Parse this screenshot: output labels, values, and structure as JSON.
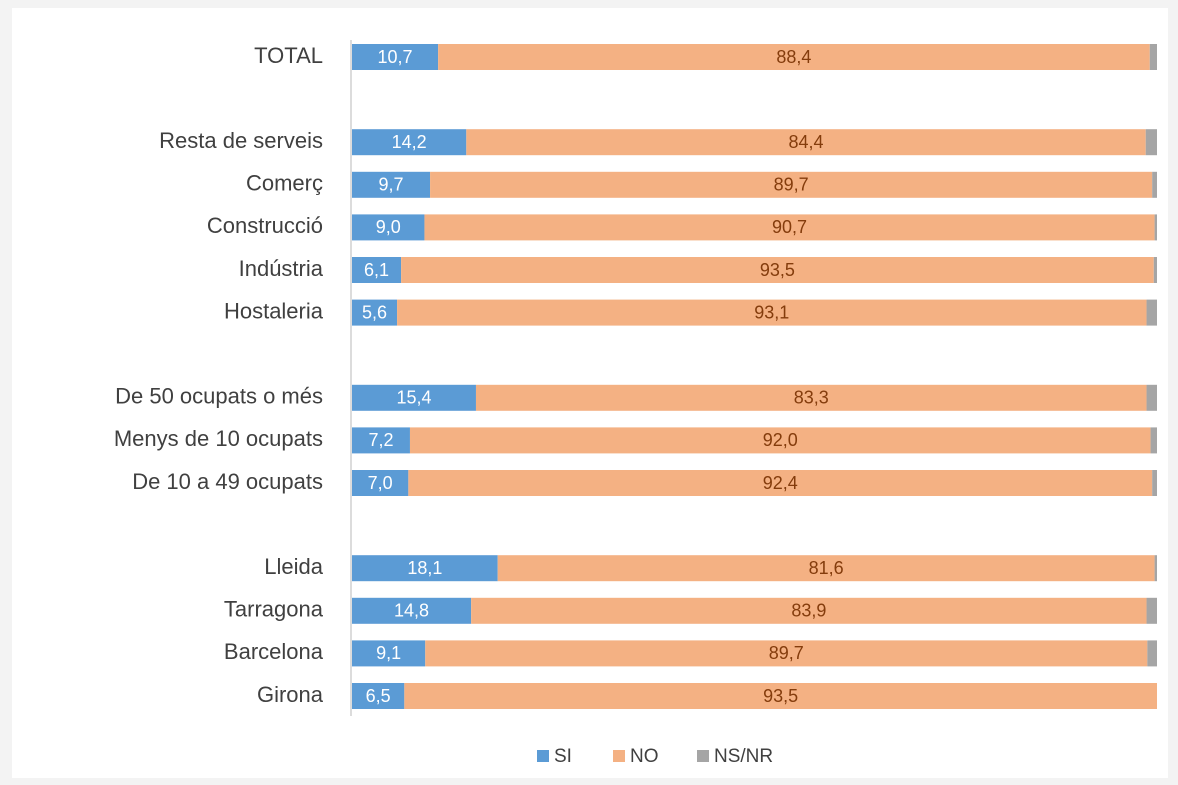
{
  "chart_data": {
    "type": "stacked-barh",
    "categories": [
      "TOTAL",
      null,
      "Resta de serveis",
      "Comerç",
      "Construcció",
      "Indústria",
      "Hostaleria",
      null,
      "De 50 ocupats o més",
      "Menys de 10 ocupats",
      "De 10 a 49 ocupats",
      null,
      "Lleida",
      "Tarragona",
      "Barcelona",
      "Girona"
    ],
    "xlim": [
      0,
      100
    ],
    "legend": "bottom",
    "series": [
      {
        "name": "SI",
        "color": "#5b9bd5",
        "values": [
          10.7,
          null,
          14.2,
          9.7,
          9.0,
          6.1,
          5.6,
          null,
          15.4,
          7.2,
          7.0,
          null,
          18.1,
          14.8,
          9.1,
          6.5
        ],
        "value_labels": [
          "10,7",
          null,
          "14,2",
          "9,7",
          "9,0",
          "6,1",
          "5,6",
          null,
          "15,4",
          "7,2",
          "7,0",
          null,
          "18,1",
          "14,8",
          "9,1",
          "6,5"
        ]
      },
      {
        "name": "NO",
        "color": "#f4b183",
        "values": [
          88.4,
          null,
          84.4,
          89.7,
          90.7,
          93.5,
          93.1,
          null,
          83.3,
          92.0,
          92.4,
          null,
          81.6,
          83.9,
          89.7,
          93.5
        ],
        "value_labels": [
          "88,4",
          null,
          "84,4",
          "89,7",
          "90,7",
          "93,5",
          "93,1",
          null,
          "83,3",
          "92,0",
          "92,4",
          null,
          "81,6",
          "83,9",
          "89,7",
          "93,5"
        ]
      },
      {
        "name": "NS/NR",
        "color": "#a5a5a5",
        "values": [
          0.9,
          null,
          1.4,
          0.6,
          0.3,
          0.4,
          1.3,
          null,
          1.3,
          0.8,
          0.6,
          null,
          0.3,
          1.3,
          1.2,
          0
        ]
      }
    ]
  }
}
